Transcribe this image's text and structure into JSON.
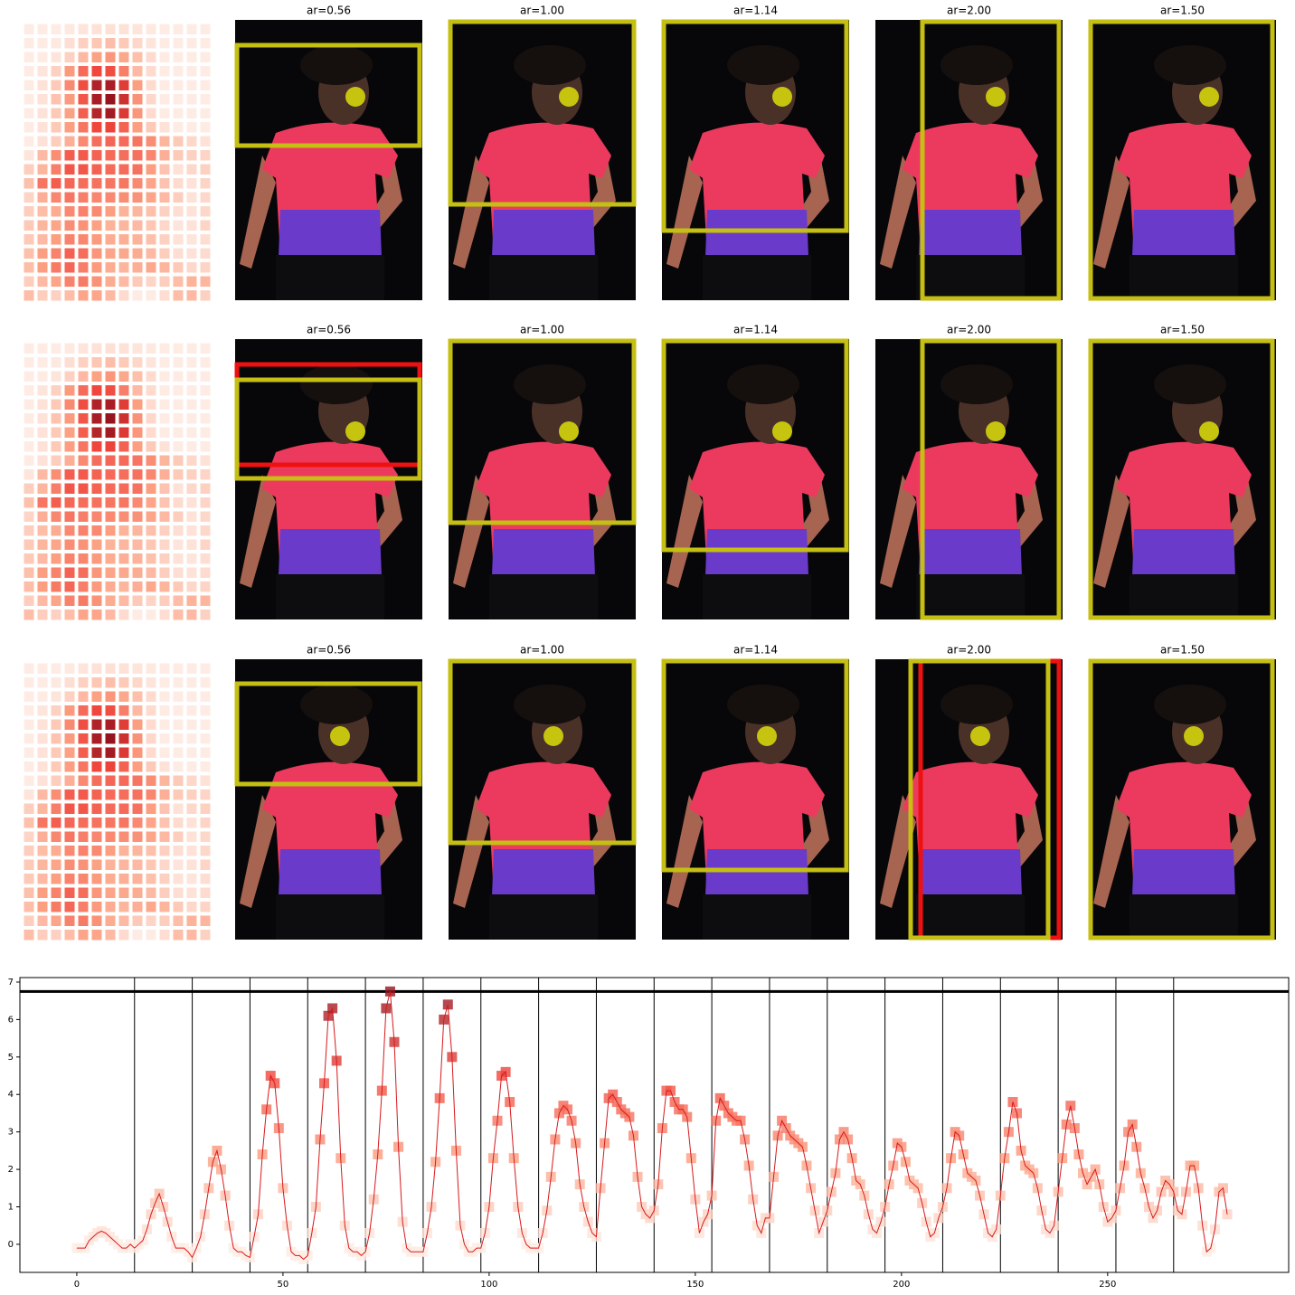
{
  "panel_rows": [
    {
      "titles": [
        "ar=0.56",
        "ar=1.00",
        "ar=1.14",
        "ar=2.00",
        "ar=1.50"
      ]
    },
    {
      "titles": [
        "ar=0.56",
        "ar=1.00",
        "ar=1.14",
        "ar=2.00",
        "ar=1.50"
      ]
    },
    {
      "titles": [
        "ar=0.56",
        "ar=1.00",
        "ar=1.14",
        "ar=2.00",
        "ar=1.50"
      ]
    }
  ],
  "chart_data": {
    "type": "line",
    "x": [
      0,
      1,
      2,
      3,
      4,
      5,
      6,
      7,
      8,
      9,
      10,
      11,
      12,
      13,
      14,
      15,
      16,
      17,
      18,
      19,
      20,
      21,
      22,
      23,
      24,
      25,
      26,
      27,
      28,
      29,
      30,
      31,
      32,
      33,
      34,
      35,
      36,
      37,
      38,
      39,
      40,
      41,
      42,
      43,
      44,
      45,
      46,
      47,
      48,
      49,
      50,
      51,
      52,
      53,
      54,
      55,
      56,
      57,
      58,
      59,
      60,
      61,
      62,
      63,
      64,
      65,
      66,
      67,
      68,
      69,
      70,
      71,
      72,
      73,
      74,
      75,
      76,
      77,
      78,
      79,
      80,
      81,
      82,
      83,
      84,
      85,
      86,
      87,
      88,
      89,
      90,
      91,
      92,
      93,
      94,
      95,
      96,
      97,
      98,
      99,
      100,
      101,
      102,
      103,
      104,
      105,
      106,
      107,
      108,
      109,
      110,
      111,
      112,
      113,
      114,
      115,
      116,
      117,
      118,
      119,
      120,
      121,
      122,
      123,
      124,
      125,
      126,
      127,
      128,
      129,
      130,
      131,
      132,
      133,
      134,
      135,
      136,
      137,
      138,
      139,
      140,
      141,
      142,
      143,
      144,
      145,
      146,
      147,
      148,
      149,
      150,
      151,
      152,
      153,
      154,
      155,
      156,
      157,
      158,
      159,
      160,
      161,
      162,
      163,
      164,
      165,
      166,
      167,
      168,
      169,
      170,
      171,
      172,
      173,
      174,
      175,
      176,
      177,
      178,
      179,
      180,
      181,
      182,
      183,
      184,
      185,
      186,
      187,
      188,
      189,
      190,
      191,
      192,
      193,
      194,
      195,
      196,
      197,
      198,
      199,
      200,
      201,
      202,
      203,
      204,
      205,
      206,
      207,
      208,
      209,
      210,
      211,
      212,
      213,
      214,
      215,
      216,
      217,
      218,
      219,
      220,
      221,
      222,
      223,
      224,
      225,
      226,
      227,
      228,
      229,
      230,
      231,
      232,
      233,
      234,
      235,
      236,
      237,
      238,
      239,
      240,
      241,
      242,
      243,
      244,
      245,
      246,
      247,
      248,
      249,
      250,
      251,
      252,
      253,
      254,
      255,
      256,
      257,
      258,
      259,
      260,
      261,
      262,
      263,
      264,
      265,
      266,
      267,
      268,
      269,
      270,
      271,
      272,
      273,
      274,
      275,
      276,
      277,
      278,
      279
    ],
    "series": [
      {
        "color": "#d7191c",
        "values": [
          -0.1,
          -0.1,
          -0.1,
          0.1,
          0.2,
          0.3,
          0.35,
          0.3,
          0.2,
          0.1,
          0,
          -0.1,
          -0.1,
          0,
          -0.1,
          0,
          0.1,
          0.4,
          0.8,
          1.1,
          1.35,
          1.0,
          0.6,
          0.2,
          -0.1,
          -0.1,
          -0.1,
          -0.2,
          -0.35,
          -0.1,
          0.2,
          0.8,
          1.5,
          2.2,
          2.5,
          2.0,
          1.3,
          0.5,
          -0.1,
          -0.2,
          -0.2,
          -0.3,
          -0.35,
          0.2,
          0.8,
          2.4,
          3.6,
          4.5,
          4.3,
          3.1,
          1.5,
          0.5,
          -0.2,
          -0.3,
          -0.3,
          -0.4,
          -0.3,
          0.3,
          1.0,
          2.8,
          4.3,
          6.1,
          6.3,
          4.9,
          2.3,
          0.5,
          -0.1,
          -0.2,
          -0.2,
          -0.3,
          -0.2,
          0.3,
          1.2,
          2.4,
          4.1,
          6.3,
          6.75,
          5.4,
          2.6,
          0.6,
          -0.1,
          -0.2,
          -0.2,
          -0.2,
          -0.2,
          0.3,
          1.0,
          2.2,
          3.9,
          6.0,
          6.4,
          5.0,
          2.5,
          0.5,
          0.0,
          -0.2,
          -0.2,
          -0.1,
          -0.1,
          0.3,
          1.0,
          2.3,
          3.3,
          4.5,
          4.6,
          3.8,
          2.3,
          1.0,
          0.3,
          0.0,
          -0.1,
          -0.1,
          -0.1,
          0.3,
          0.9,
          1.8,
          2.8,
          3.5,
          3.7,
          3.6,
          3.3,
          2.7,
          1.6,
          1.0,
          0.6,
          0.3,
          0.2,
          1.5,
          2.7,
          3.9,
          4.0,
          3.8,
          3.6,
          3.5,
          3.4,
          2.9,
          1.8,
          1.0,
          0.8,
          0.7,
          0.9,
          1.6,
          3.1,
          4.1,
          4.1,
          3.8,
          3.6,
          3.6,
          3.4,
          2.3,
          1.2,
          0.3,
          0.6,
          0.8,
          1.3,
          3.3,
          3.9,
          3.7,
          3.5,
          3.4,
          3.3,
          3.3,
          2.8,
          2.1,
          1.2,
          0.5,
          0.3,
          0.7,
          0.7,
          1.8,
          2.9,
          3.3,
          3.1,
          2.9,
          2.8,
          2.7,
          2.6,
          2.1,
          1.5,
          0.9,
          0.3,
          0.6,
          0.9,
          1.4,
          1.9,
          2.8,
          3.0,
          2.8,
          2.3,
          1.7,
          1.6,
          1.3,
          0.8,
          0.4,
          0.3,
          0.6,
          1.0,
          1.6,
          2.1,
          2.7,
          2.6,
          2.2,
          1.7,
          1.6,
          1.5,
          1.1,
          0.6,
          0.2,
          0.3,
          0.7,
          1.0,
          1.5,
          2.3,
          3.0,
          2.9,
          2.4,
          1.9,
          1.8,
          1.7,
          1.3,
          0.8,
          0.3,
          0.2,
          0.4,
          1.3,
          2.3,
          3.0,
          3.8,
          3.5,
          2.5,
          2.1,
          2.0,
          1.9,
          1.5,
          0.9,
          0.4,
          0.3,
          0.5,
          1.4,
          2.3,
          3.2,
          3.7,
          3.1,
          2.4,
          1.9,
          1.6,
          1.8,
          2.0,
          1.6,
          1.0,
          0.6,
          0.7,
          0.9,
          1.5,
          2.1,
          3.0,
          3.2,
          2.6,
          1.9,
          1.5,
          1.0,
          0.7,
          0.9,
          1.4,
          1.7,
          1.6,
          1.4,
          0.9,
          0.8,
          1.4,
          2.1,
          2.1,
          1.5,
          0.5,
          -0.2,
          -0.1,
          0.4,
          1.4,
          1.5,
          0.8
        ]
      }
    ],
    "xlim": [
      -13.8,
      293.9
    ],
    "ylim": [
      -0.75,
      7.12
    ],
    "xticks": [
      0,
      50,
      100,
      150,
      200,
      250
    ],
    "yticks": [
      0,
      1,
      2,
      3,
      4,
      5,
      6,
      7
    ],
    "hline": 6.75,
    "vlines": [
      14,
      28,
      42,
      56,
      70,
      84,
      98,
      112,
      126,
      140,
      154,
      168,
      182,
      196,
      210,
      224,
      238,
      252,
      266
    ],
    "heatmap_columns": 14
  }
}
